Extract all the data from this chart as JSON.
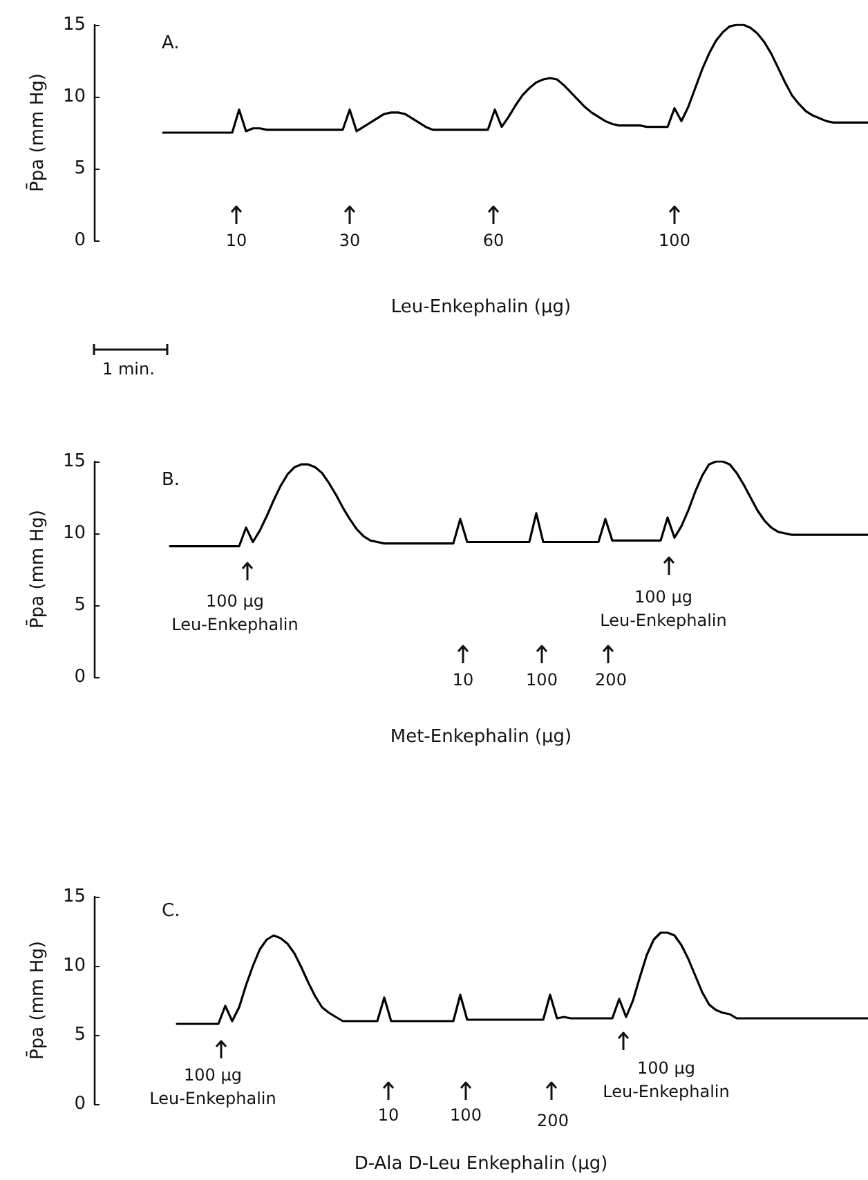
{
  "chart_data": [
    {
      "type": "line",
      "title": "A.",
      "xlabel": "Leu-Enkephalin (µg)",
      "ylabel": "P̄pa (mm Hg)",
      "ylim": [
        0,
        15
      ],
      "yticks": [
        0,
        5,
        10,
        15
      ],
      "tick_labels": "y",
      "line_style": "solid",
      "color": "#000000",
      "categories": [
        null,
        null,
        null,
        null,
        null,
        null,
        null,
        null,
        null,
        null,
        null,
        null,
        null,
        null,
        null,
        null,
        null,
        null,
        null,
        null,
        null,
        null,
        null,
        null,
        null,
        null,
        null,
        null,
        null,
        null,
        null,
        null,
        null,
        null,
        null,
        null,
        null,
        null,
        null,
        null,
        null,
        null,
        null,
        null,
        null,
        null,
        null,
        null,
        null,
        null,
        null,
        null,
        null,
        null,
        null,
        null,
        null,
        null,
        null,
        null,
        null,
        null,
        null,
        null,
        null,
        null,
        null,
        null,
        null,
        null,
        null,
        null,
        null,
        null,
        null,
        null,
        null,
        null,
        null,
        null,
        null,
        null,
        null,
        null,
        null,
        null,
        null,
        null,
        null,
        null,
        null,
        null,
        null,
        null,
        null,
        null,
        null,
        null,
        null,
        null,
        null,
        null,
        null,
        null,
        null,
        null,
        null,
        null,
        null,
        null,
        null,
        null,
        null
      ],
      "values": [
        null,
        null,
        null,
        null,
        null,
        null,
        null,
        null,
        null,
        null,
        7.5,
        7.5,
        7.5,
        7.5,
        7.5,
        7.5,
        7.5,
        7.5,
        7.5,
        7.5,
        7.5,
        9.1,
        7.6,
        7.8,
        7.8,
        7.7,
        7.7,
        7.7,
        7.7,
        7.7,
        7.7,
        7.7,
        7.7,
        7.7,
        7.7,
        7.7,
        7.7,
        9.1,
        7.6,
        7.9,
        8.2,
        8.5,
        8.8,
        8.9,
        8.9,
        8.8,
        8.5,
        8.2,
        7.9,
        7.7,
        7.7,
        7.7,
        7.7,
        7.7,
        7.7,
        7.7,
        7.7,
        7.7,
        9.1,
        7.9,
        8.6,
        9.4,
        10.1,
        10.6,
        11.0,
        11.2,
        11.3,
        11.2,
        10.8,
        10.3,
        9.8,
        9.3,
        8.9,
        8.6,
        8.3,
        8.1,
        8.0,
        8.0,
        8.0,
        8.0,
        7.9,
        7.9,
        7.9,
        7.9,
        9.2,
        8.3,
        9.3,
        10.6,
        11.9,
        13.0,
        13.9,
        14.5,
        14.9,
        15.0,
        15.0,
        14.8,
        14.4,
        13.8,
        13.0,
        12.0,
        11.0,
        10.1,
        9.5,
        9.0,
        8.7,
        8.5,
        8.3,
        8.2,
        8.2,
        8.2,
        8.2,
        8.2,
        8.2
      ],
      "annotations": [
        "10",
        "30",
        "60",
        "100",
        "1 min."
      ]
    },
    {
      "type": "line",
      "title": "B.",
      "xlabel": "Met-Enkephalin (µg)",
      "ylabel": "P̄pa (mm Hg)",
      "ylim": [
        0,
        15
      ],
      "yticks": [
        0,
        5,
        10,
        15
      ],
      "tick_labels": "y",
      "line_style": "solid",
      "color": "#000000",
      "categories": [
        null,
        null,
        null,
        null,
        null,
        null,
        null,
        null,
        null,
        null,
        null,
        null,
        null,
        null,
        null,
        null,
        null,
        null,
        null,
        null,
        null,
        null,
        null,
        null,
        null,
        null,
        null,
        null,
        null,
        null,
        null,
        null,
        null,
        null,
        null,
        null,
        null,
        null,
        null,
        null,
        null,
        null,
        null,
        null,
        null,
        null,
        null,
        null,
        null,
        null,
        null,
        null,
        null,
        null,
        null,
        null,
        null,
        null,
        null,
        null,
        null,
        null,
        null,
        null,
        null,
        null,
        null,
        null,
        null,
        null,
        null,
        null,
        null,
        null,
        null,
        null,
        null,
        null,
        null,
        null,
        null,
        null,
        null,
        null,
        null,
        null,
        null,
        null,
        null,
        null,
        null,
        null,
        null,
        null,
        null,
        null,
        null,
        null,
        null,
        null,
        null,
        null,
        null,
        null,
        null,
        null,
        null,
        null,
        null,
        null,
        null,
        null,
        null
      ],
      "values": [
        null,
        null,
        null,
        null,
        null,
        null,
        null,
        null,
        null,
        null,
        null,
        9.1,
        9.1,
        9.1,
        9.1,
        9.1,
        9.1,
        9.1,
        9.1,
        9.1,
        9.1,
        9.1,
        10.4,
        9.4,
        10.2,
        11.2,
        12.3,
        13.3,
        14.1,
        14.6,
        14.8,
        14.8,
        14.6,
        14.2,
        13.5,
        12.7,
        11.8,
        11.0,
        10.3,
        9.8,
        9.5,
        9.4,
        9.3,
        9.3,
        9.3,
        9.3,
        9.3,
        9.3,
        9.3,
        9.3,
        9.3,
        9.3,
        9.3,
        11.0,
        9.4,
        9.4,
        9.4,
        9.4,
        9.4,
        9.4,
        9.4,
        9.4,
        9.4,
        9.4,
        11.4,
        9.4,
        9.4,
        9.4,
        9.4,
        9.4,
        9.4,
        9.4,
        9.4,
        9.4,
        11.0,
        9.5,
        9.5,
        9.5,
        9.5,
        9.5,
        9.5,
        9.5,
        9.5,
        11.1,
        9.7,
        10.5,
        11.6,
        12.9,
        14.0,
        14.8,
        15.0,
        15.0,
        14.8,
        14.2,
        13.4,
        12.5,
        11.6,
        10.9,
        10.4,
        10.1,
        10.0,
        9.9,
        9.9,
        9.9,
        9.9,
        9.9,
        9.9,
        9.9,
        9.9,
        9.9,
        9.9,
        9.9,
        9.9
      ],
      "annotations": [
        "100 µg\nLeu-Enkephalin",
        "100 µg\nLeu-Enkephalin",
        "10",
        "100",
        "200"
      ]
    },
    {
      "type": "line",
      "title": "C.",
      "xlabel": "D-Ala D-Leu Enkephalin (µg)",
      "ylabel": "P̄pa (mm Hg)",
      "ylim": [
        0,
        15
      ],
      "yticks": [
        0,
        5,
        10,
        15
      ],
      "tick_labels": "y",
      "line_style": "solid",
      "color": "#000000",
      "categories": [
        null,
        null,
        null,
        null,
        null,
        null,
        null,
        null,
        null,
        null,
        null,
        null,
        null,
        null,
        null,
        null,
        null,
        null,
        null,
        null,
        null,
        null,
        null,
        null,
        null,
        null,
        null,
        null,
        null,
        null,
        null,
        null,
        null,
        null,
        null,
        null,
        null,
        null,
        null,
        null,
        null,
        null,
        null,
        null,
        null,
        null,
        null,
        null,
        null,
        null,
        null,
        null,
        null,
        null,
        null,
        null,
        null,
        null,
        null,
        null,
        null,
        null,
        null,
        null,
        null,
        null,
        null,
        null,
        null,
        null,
        null,
        null,
        null,
        null,
        null,
        null,
        null,
        null,
        null,
        null,
        null,
        null,
        null,
        null,
        null,
        null,
        null,
        null,
        null,
        null,
        null,
        null,
        null,
        null,
        null,
        null,
        null,
        null,
        null,
        null,
        null,
        null,
        null,
        null,
        null,
        null,
        null,
        null,
        null,
        null,
        null,
        null,
        null
      ],
      "values": [
        null,
        null,
        null,
        null,
        null,
        null,
        null,
        null,
        null,
        null,
        null,
        null,
        5.8,
        5.8,
        5.8,
        5.8,
        5.8,
        5.8,
        5.8,
        7.1,
        6.0,
        7.0,
        8.6,
        10.0,
        11.2,
        11.9,
        12.2,
        12.0,
        11.6,
        10.9,
        9.9,
        8.8,
        7.8,
        7.0,
        6.6,
        6.3,
        6.0,
        6.0,
        6.0,
        6.0,
        6.0,
        6.0,
        7.7,
        6.0,
        6.0,
        6.0,
        6.0,
        6.0,
        6.0,
        6.0,
        6.0,
        6.0,
        6.0,
        7.9,
        6.1,
        6.1,
        6.1,
        6.1,
        6.1,
        6.1,
        6.1,
        6.1,
        6.1,
        6.1,
        6.1,
        6.1,
        7.9,
        6.2,
        6.3,
        6.2,
        6.2,
        6.2,
        6.2,
        6.2,
        6.2,
        6.2,
        7.6,
        6.3,
        7.5,
        9.2,
        10.8,
        11.9,
        12.4,
        12.4,
        12.2,
        11.5,
        10.5,
        9.3,
        8.1,
        7.2,
        6.8,
        6.6,
        6.5,
        6.2,
        6.2,
        6.2,
        6.2,
        6.2,
        6.2,
        6.2,
        6.2,
        6.2,
        6.2,
        6.2,
        6.2,
        6.2,
        6.2,
        6.2,
        6.2,
        6.2,
        6.2,
        6.2,
        6.2
      ],
      "annotations": [
        "100 µg\nLeu-Enkephalin",
        "100 µg\nLeu-Enkephalin",
        "10",
        "100",
        "200"
      ]
    }
  ]
}
